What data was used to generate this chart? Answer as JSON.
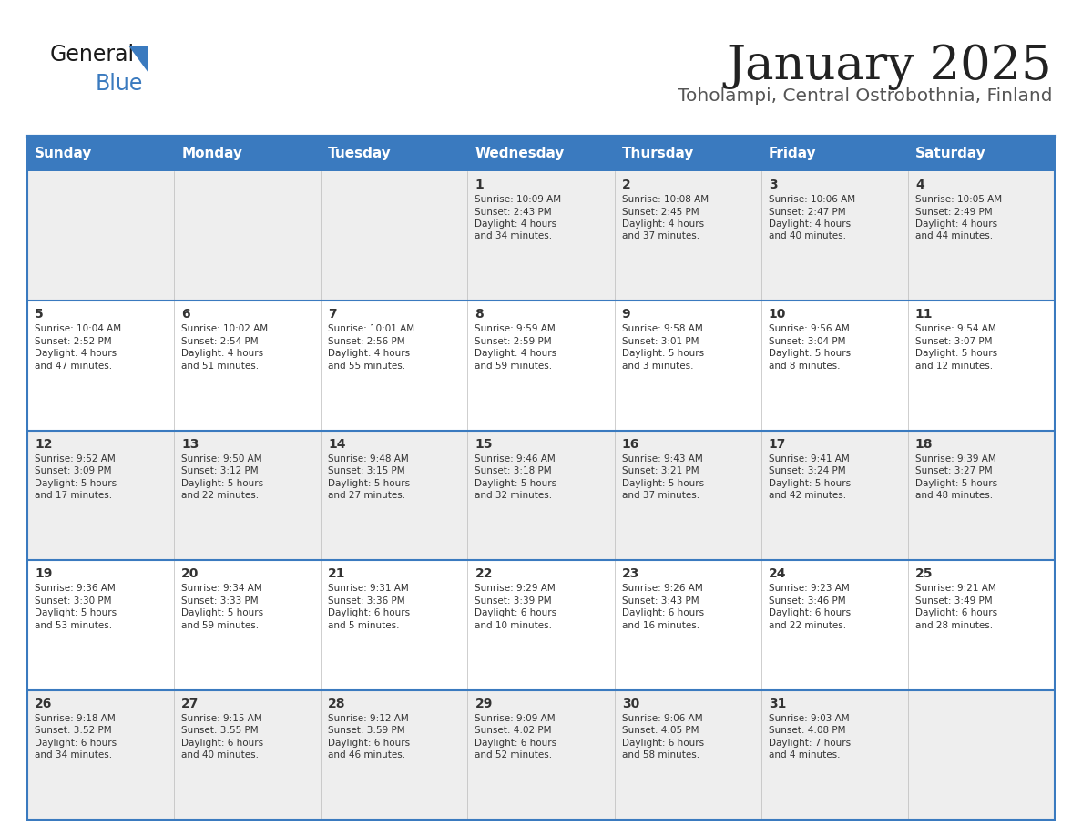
{
  "title": "January 2025",
  "subtitle": "Toholampi, Central Ostrobothnia, Finland",
  "header_color": "#3a7abf",
  "header_text_color": "#ffffff",
  "day_names": [
    "Sunday",
    "Monday",
    "Tuesday",
    "Wednesday",
    "Thursday",
    "Friday",
    "Saturday"
  ],
  "bg_color_even": "#eeeeee",
  "bg_color_odd": "#ffffff",
  "border_color": "#3a7abf",
  "text_color": "#333333",
  "days": [
    {
      "day": 1,
      "col": 3,
      "row": 0,
      "sunrise": "10:09 AM",
      "sunset": "2:43 PM",
      "daylight": "4 hours and 34 minutes."
    },
    {
      "day": 2,
      "col": 4,
      "row": 0,
      "sunrise": "10:08 AM",
      "sunset": "2:45 PM",
      "daylight": "4 hours and 37 minutes."
    },
    {
      "day": 3,
      "col": 5,
      "row": 0,
      "sunrise": "10:06 AM",
      "sunset": "2:47 PM",
      "daylight": "4 hours and 40 minutes."
    },
    {
      "day": 4,
      "col": 6,
      "row": 0,
      "sunrise": "10:05 AM",
      "sunset": "2:49 PM",
      "daylight": "4 hours and 44 minutes."
    },
    {
      "day": 5,
      "col": 0,
      "row": 1,
      "sunrise": "10:04 AM",
      "sunset": "2:52 PM",
      "daylight": "4 hours and 47 minutes."
    },
    {
      "day": 6,
      "col": 1,
      "row": 1,
      "sunrise": "10:02 AM",
      "sunset": "2:54 PM",
      "daylight": "4 hours and 51 minutes."
    },
    {
      "day": 7,
      "col": 2,
      "row": 1,
      "sunrise": "10:01 AM",
      "sunset": "2:56 PM",
      "daylight": "4 hours and 55 minutes."
    },
    {
      "day": 8,
      "col": 3,
      "row": 1,
      "sunrise": "9:59 AM",
      "sunset": "2:59 PM",
      "daylight": "4 hours and 59 minutes."
    },
    {
      "day": 9,
      "col": 4,
      "row": 1,
      "sunrise": "9:58 AM",
      "sunset": "3:01 PM",
      "daylight": "5 hours and 3 minutes."
    },
    {
      "day": 10,
      "col": 5,
      "row": 1,
      "sunrise": "9:56 AM",
      "sunset": "3:04 PM",
      "daylight": "5 hours and 8 minutes."
    },
    {
      "day": 11,
      "col": 6,
      "row": 1,
      "sunrise": "9:54 AM",
      "sunset": "3:07 PM",
      "daylight": "5 hours and 12 minutes."
    },
    {
      "day": 12,
      "col": 0,
      "row": 2,
      "sunrise": "9:52 AM",
      "sunset": "3:09 PM",
      "daylight": "5 hours and 17 minutes."
    },
    {
      "day": 13,
      "col": 1,
      "row": 2,
      "sunrise": "9:50 AM",
      "sunset": "3:12 PM",
      "daylight": "5 hours and 22 minutes."
    },
    {
      "day": 14,
      "col": 2,
      "row": 2,
      "sunrise": "9:48 AM",
      "sunset": "3:15 PM",
      "daylight": "5 hours and 27 minutes."
    },
    {
      "day": 15,
      "col": 3,
      "row": 2,
      "sunrise": "9:46 AM",
      "sunset": "3:18 PM",
      "daylight": "5 hours and 32 minutes."
    },
    {
      "day": 16,
      "col": 4,
      "row": 2,
      "sunrise": "9:43 AM",
      "sunset": "3:21 PM",
      "daylight": "5 hours and 37 minutes."
    },
    {
      "day": 17,
      "col": 5,
      "row": 2,
      "sunrise": "9:41 AM",
      "sunset": "3:24 PM",
      "daylight": "5 hours and 42 minutes."
    },
    {
      "day": 18,
      "col": 6,
      "row": 2,
      "sunrise": "9:39 AM",
      "sunset": "3:27 PM",
      "daylight": "5 hours and 48 minutes."
    },
    {
      "day": 19,
      "col": 0,
      "row": 3,
      "sunrise": "9:36 AM",
      "sunset": "3:30 PM",
      "daylight": "5 hours and 53 minutes."
    },
    {
      "day": 20,
      "col": 1,
      "row": 3,
      "sunrise": "9:34 AM",
      "sunset": "3:33 PM",
      "daylight": "5 hours and 59 minutes."
    },
    {
      "day": 21,
      "col": 2,
      "row": 3,
      "sunrise": "9:31 AM",
      "sunset": "3:36 PM",
      "daylight": "6 hours and 5 minutes."
    },
    {
      "day": 22,
      "col": 3,
      "row": 3,
      "sunrise": "9:29 AM",
      "sunset": "3:39 PM",
      "daylight": "6 hours and 10 minutes."
    },
    {
      "day": 23,
      "col": 4,
      "row": 3,
      "sunrise": "9:26 AM",
      "sunset": "3:43 PM",
      "daylight": "6 hours and 16 minutes."
    },
    {
      "day": 24,
      "col": 5,
      "row": 3,
      "sunrise": "9:23 AM",
      "sunset": "3:46 PM",
      "daylight": "6 hours and 22 minutes."
    },
    {
      "day": 25,
      "col": 6,
      "row": 3,
      "sunrise": "9:21 AM",
      "sunset": "3:49 PM",
      "daylight": "6 hours and 28 minutes."
    },
    {
      "day": 26,
      "col": 0,
      "row": 4,
      "sunrise": "9:18 AM",
      "sunset": "3:52 PM",
      "daylight": "6 hours and 34 minutes."
    },
    {
      "day": 27,
      "col": 1,
      "row": 4,
      "sunrise": "9:15 AM",
      "sunset": "3:55 PM",
      "daylight": "6 hours and 40 minutes."
    },
    {
      "day": 28,
      "col": 2,
      "row": 4,
      "sunrise": "9:12 AM",
      "sunset": "3:59 PM",
      "daylight": "6 hours and 46 minutes."
    },
    {
      "day": 29,
      "col": 3,
      "row": 4,
      "sunrise": "9:09 AM",
      "sunset": "4:02 PM",
      "daylight": "6 hours and 52 minutes."
    },
    {
      "day": 30,
      "col": 4,
      "row": 4,
      "sunrise": "9:06 AM",
      "sunset": "4:05 PM",
      "daylight": "6 hours and 58 minutes."
    },
    {
      "day": 31,
      "col": 5,
      "row": 4,
      "sunrise": "9:03 AM",
      "sunset": "4:08 PM",
      "daylight": "7 hours and 4 minutes."
    }
  ]
}
